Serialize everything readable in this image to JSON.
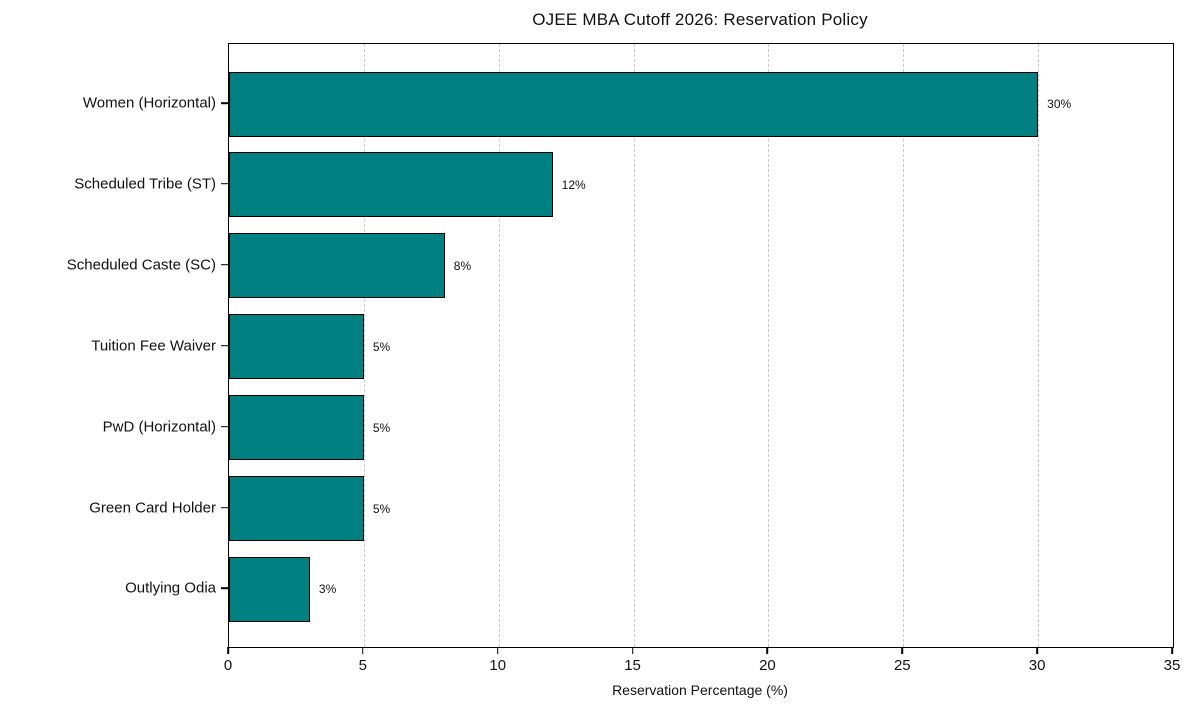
{
  "chart_data": {
    "type": "bar",
    "orientation": "horizontal",
    "title": "OJEE MBA Cutoff 2026: Reservation Policy",
    "xlabel": "Reservation Percentage (%)",
    "categories": [
      "Women (Horizontal)",
      "Scheduled Tribe (ST)",
      "Scheduled Caste (SC)",
      "Tuition Fee Waiver",
      "PwD (Horizontal)",
      "Green Card Holder",
      "Outlying Odia"
    ],
    "values": [
      30,
      12,
      8,
      5,
      5,
      5,
      3
    ],
    "value_labels": [
      "30%",
      "12%",
      "8%",
      "5%",
      "5%",
      "5%",
      "3%"
    ],
    "xlim": [
      0,
      35
    ],
    "xticks": [
      0,
      5,
      10,
      15,
      20,
      25,
      30,
      35
    ],
    "grid": "vertical-dashed",
    "legend": "none",
    "bar_color": "#008080",
    "bar_edge_color": "#000000",
    "grid_color": "#c9c9c9",
    "background_color": "#ffffff"
  }
}
